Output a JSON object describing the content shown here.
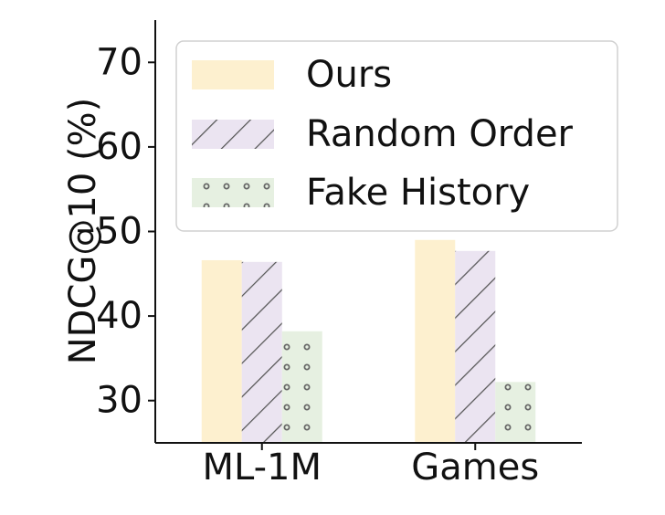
{
  "chart_data": {
    "type": "bar",
    "categories": [
      "ML-1M",
      "Games"
    ],
    "series": [
      {
        "name": "Ours",
        "values": [
          46.6,
          49.0
        ],
        "color": "#fdf0cf",
        "pattern": "solid"
      },
      {
        "name": "Random Order",
        "values": [
          46.4,
          47.7
        ],
        "color": "#ebe4f1",
        "pattern": "diagonal-lines"
      },
      {
        "name": "Fake History",
        "values": [
          38.2,
          32.2
        ],
        "color": "#e6f0e1",
        "pattern": "dots"
      }
    ],
    "xlabel": "",
    "ylabel": "NDCG@10 (%)",
    "ylim": [
      25,
      75
    ],
    "yticks": [
      30,
      40,
      50,
      60,
      70
    ],
    "legend_position": "top-right",
    "grid": false
  }
}
